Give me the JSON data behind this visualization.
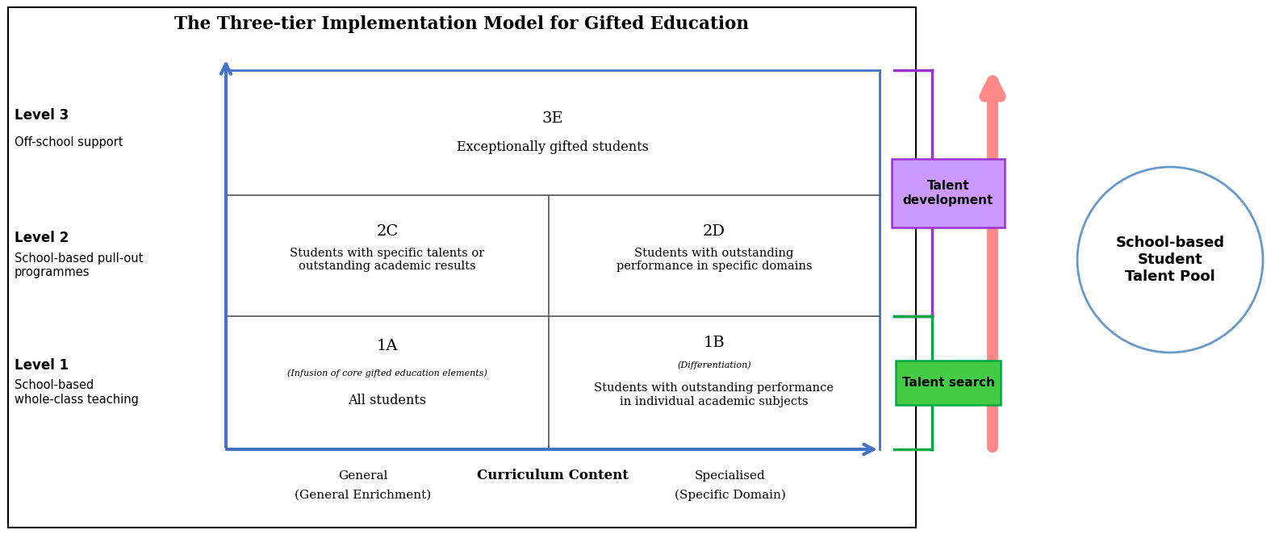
{
  "title": "The Three-tier Implementation Model for Gifted Education",
  "bg_color": "#ffffff",
  "border_color": "#000000",
  "blue_arrow_color": "#4472C4",
  "pink_arrow_color": "#FF8888",
  "purple_bracket_color": "#9933CC",
  "green_bracket_color": "#00AA44",
  "talent_dev_box_color": "#CC99FF",
  "talent_search_box_color": "#44CC44",
  "circle_color": "#6699CC",
  "level_labels": [
    {
      "bold": "Level 1",
      "normal": "School-based\nwhole-class teaching"
    },
    {
      "bold": "Level 2",
      "normal": "School-based pull-out\nprogrammes"
    },
    {
      "bold": "Level 3",
      "normal": "Off-school support"
    }
  ],
  "cells": {
    "3E": {
      "label": "3E",
      "desc": "Exceptionally gifted students"
    },
    "2C": {
      "label": "2C",
      "desc": "Students with specific talents or\noutstanding academic results"
    },
    "2D": {
      "label": "2D",
      "desc": "Students with outstanding\nperformance in specific domains"
    },
    "1A": {
      "label": "1A",
      "sub": "(Infusion of core gifted education elements)",
      "desc": "All students"
    },
    "1B": {
      "label": "1B",
      "sub": "(Differentiation)",
      "desc": "Students with outstanding performance\nin individual academic subjects"
    }
  },
  "x_axis_labels": {
    "general": "General",
    "general_sub": "(General Enrichment)",
    "curriculum_bold": "Curriculum Content",
    "specialised": "Specialised",
    "specialised_sub": "(Specific Domain)"
  },
  "right_labels": {
    "talent_dev": "Talent\ndevelopment",
    "talent_search": "Talent search",
    "circle": "School-based\nStudent\nTalent Pool"
  }
}
